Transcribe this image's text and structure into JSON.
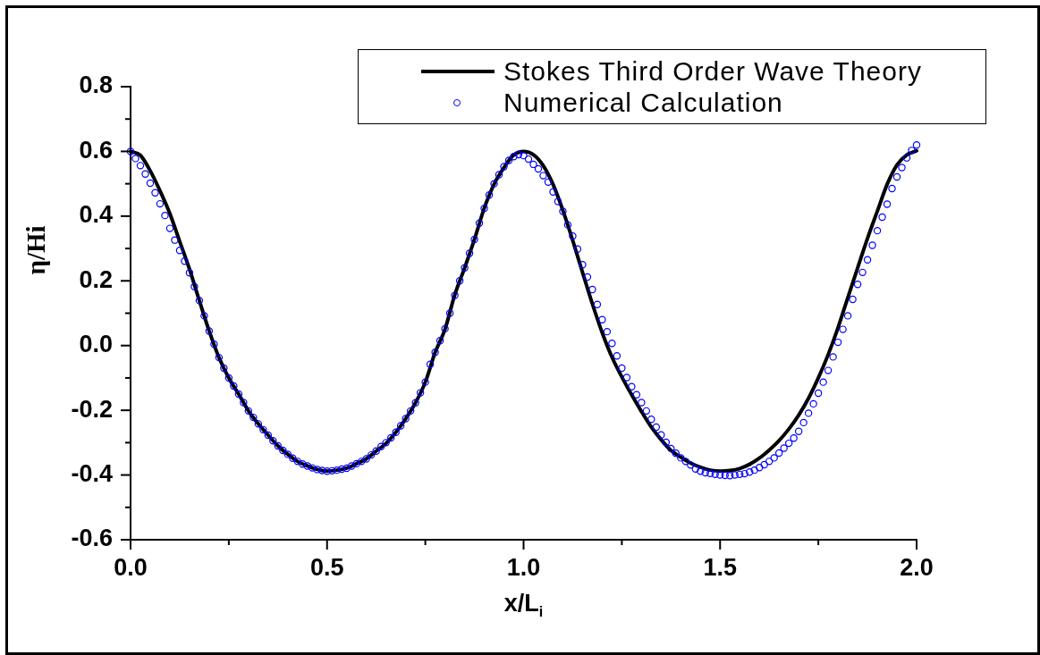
{
  "chart_data": {
    "type": "line",
    "xlabel": "x/L$_{i}$",
    "ylabel": "η/Hi",
    "xlim": [
      0,
      2
    ],
    "ylim": [
      -0.6,
      0.8
    ],
    "xticks": [
      {
        "value": 0,
        "label": "0.0"
      },
      {
        "value": 0.25,
        "label": null
      },
      0.5,
      {
        "value": 0.75,
        "label": null
      },
      {
        "value": 1,
        "label": "1.0"
      },
      {
        "value": 1.25,
        "label": null
      },
      1.5,
      {
        "value": 1.75,
        "label": null
      },
      {
        "value": 2,
        "label": "2.0"
      }
    ],
    "yticks": [
      -0.6,
      {
        "value": -0.5,
        "label": null
      },
      -0.4,
      {
        "value": -0.3,
        "label": null
      },
      -0.2,
      {
        "value": -0.1,
        "label": null
      },
      {
        "value": 0,
        "label": "0.0"
      },
      {
        "value": 0.1,
        "label": null
      },
      0.2,
      {
        "value": 0.3,
        "label": null
      },
      0.4,
      {
        "value": 0.5,
        "label": null
      },
      0.6,
      {
        "value": 0.7,
        "label": null
      },
      0.8
    ],
    "grid": false,
    "legend": "top right",
    "series": [
      {
        "name": "Stokes Third Order Wave Theory",
        "color": "#000000",
        "marker": "none",
        "line_style": "solid",
        "x": [
          0,
          0.025,
          0.05,
          0.075,
          0.1,
          0.125,
          0.15,
          0.175,
          0.2,
          0.225,
          0.25,
          0.275,
          0.3,
          0.325,
          0.35,
          0.375,
          0.4,
          0.425,
          0.45,
          0.475,
          0.5,
          0.525,
          0.55,
          0.575,
          0.6,
          0.625,
          0.65,
          0.675,
          0.7,
          0.725,
          0.75,
          0.775,
          0.8,
          0.825,
          0.85,
          0.875,
          0.9,
          0.925,
          0.95,
          0.975,
          1,
          1.025,
          1.05,
          1.075,
          1.1,
          1.125,
          1.15,
          1.175,
          1.2,
          1.225,
          1.25,
          1.275,
          1.3,
          1.325,
          1.35,
          1.375,
          1.4,
          1.425,
          1.45,
          1.475,
          1.5,
          1.525,
          1.55,
          1.575,
          1.6,
          1.625,
          1.65,
          1.675,
          1.7,
          1.725,
          1.75,
          1.775,
          1.8,
          1.825,
          1.85,
          1.875,
          1.9,
          1.925,
          1.95,
          1.975,
          2
        ],
        "values": [
          0.6,
          0.588,
          0.54,
          0.478,
          0.408,
          0.322,
          0.236,
          0.139,
          0.045,
          -0.037,
          -0.1,
          -0.15,
          -0.202,
          -0.242,
          -0.277,
          -0.31,
          -0.336,
          -0.358,
          -0.372,
          -0.383,
          -0.388,
          -0.385,
          -0.379,
          -0.365,
          -0.35,
          -0.326,
          -0.302,
          -0.268,
          -0.226,
          -0.177,
          -0.113,
          -0.021,
          0.05,
          0.157,
          0.24,
          0.328,
          0.425,
          0.499,
          0.55,
          0.589,
          0.6,
          0.59,
          0.556,
          0.498,
          0.418,
          0.325,
          0.226,
          0.129,
          0.04,
          -0.036,
          -0.097,
          -0.152,
          -0.204,
          -0.252,
          -0.291,
          -0.324,
          -0.345,
          -0.363,
          -0.376,
          -0.385,
          -0.388,
          -0.386,
          -0.38,
          -0.367,
          -0.348,
          -0.323,
          -0.294,
          -0.258,
          -0.215,
          -0.163,
          -0.1,
          -0.028,
          0.055,
          0.148,
          0.24,
          0.331,
          0.415,
          0.498,
          0.558,
          0.589,
          0.602
        ]
      },
      {
        "name": "Numerical Calculation",
        "type": "scatter",
        "color": "#0000ff",
        "marker": "circle",
        "x": [
          0,
          0.0125,
          0.025,
          0.0375,
          0.05,
          0.0625,
          0.075,
          0.0875,
          0.1,
          0.1125,
          0.125,
          0.1375,
          0.15,
          0.1625,
          0.175,
          0.1875,
          0.2,
          0.2125,
          0.225,
          0.2375,
          0.25,
          0.2625,
          0.275,
          0.2875,
          0.3,
          0.3125,
          0.325,
          0.3375,
          0.35,
          0.3625,
          0.375,
          0.3875,
          0.4,
          0.4125,
          0.425,
          0.4375,
          0.45,
          0.4625,
          0.475,
          0.4875,
          0.5,
          0.5125,
          0.525,
          0.5375,
          0.55,
          0.5625,
          0.575,
          0.5875,
          0.6,
          0.6125,
          0.625,
          0.6375,
          0.65,
          0.6625,
          0.675,
          0.6875,
          0.7,
          0.7125,
          0.725,
          0.7375,
          0.75,
          0.7625,
          0.775,
          0.7875,
          0.8,
          0.8125,
          0.825,
          0.8375,
          0.85,
          0.8625,
          0.875,
          0.8875,
          0.9,
          0.9125,
          0.925,
          0.9375,
          0.95,
          0.9625,
          0.975,
          0.9875,
          1,
          1.0125,
          1.025,
          1.0375,
          1.05,
          1.0625,
          1.075,
          1.0875,
          1.1,
          1.1125,
          1.125,
          1.1375,
          1.15,
          1.1625,
          1.175,
          1.1875,
          1.2,
          1.2125,
          1.225,
          1.2375,
          1.25,
          1.2625,
          1.275,
          1.2875,
          1.3,
          1.3125,
          1.325,
          1.3375,
          1.35,
          1.3625,
          1.375,
          1.3875,
          1.4,
          1.4125,
          1.425,
          1.4375,
          1.45,
          1.4625,
          1.475,
          1.4875,
          1.5,
          1.5125,
          1.525,
          1.5375,
          1.55,
          1.5625,
          1.575,
          1.5875,
          1.6,
          1.6125,
          1.625,
          1.6375,
          1.65,
          1.6625,
          1.675,
          1.6875,
          1.7,
          1.7125,
          1.725,
          1.7375,
          1.75,
          1.7625,
          1.775,
          1.7875,
          1.8,
          1.8125,
          1.825,
          1.8375,
          1.85,
          1.8625,
          1.875,
          1.8875,
          1.9,
          1.9125,
          1.925,
          1.9375,
          1.95,
          1.9625,
          1.975,
          1.9875,
          2
        ],
        "values": [
          0.6,
          0.578,
          0.556,
          0.53,
          0.502,
          0.472,
          0.438,
          0.402,
          0.362,
          0.326,
          0.294,
          0.261,
          0.225,
          0.182,
          0.139,
          0.092,
          0.045,
          0.004,
          -0.037,
          -0.07,
          -0.1,
          -0.125,
          -0.15,
          -0.176,
          -0.202,
          -0.222,
          -0.242,
          -0.26,
          -0.277,
          -0.294,
          -0.31,
          -0.324,
          -0.336,
          -0.348,
          -0.358,
          -0.366,
          -0.372,
          -0.378,
          -0.383,
          -0.386,
          -0.388,
          -0.387,
          -0.385,
          -0.382,
          -0.379,
          -0.372,
          -0.365,
          -0.358,
          -0.35,
          -0.338,
          -0.326,
          -0.312,
          -0.3,
          -0.285,
          -0.268,
          -0.248,
          -0.226,
          -0.202,
          -0.177,
          -0.146,
          -0.113,
          -0.058,
          -0.021,
          0.015,
          0.052,
          0.1,
          0.155,
          0.2,
          0.24,
          0.285,
          0.328,
          0.378,
          0.424,
          0.465,
          0.5,
          0.528,
          0.553,
          0.572,
          0.584,
          0.59,
          0.587,
          0.576,
          0.56,
          0.546,
          0.525,
          0.505,
          0.475,
          0.445,
          0.415,
          0.373,
          0.338,
          0.298,
          0.25,
          0.212,
          0.173,
          0.127,
          0.08,
          0.043,
          0.007,
          -0.032,
          -0.07,
          -0.099,
          -0.127,
          -0.152,
          -0.176,
          -0.202,
          -0.228,
          -0.252,
          -0.276,
          -0.299,
          -0.318,
          -0.333,
          -0.347,
          -0.358,
          -0.369,
          -0.381,
          -0.388,
          -0.393,
          -0.395,
          -0.398,
          -0.4,
          -0.401,
          -0.402,
          -0.4,
          -0.398,
          -0.396,
          -0.391,
          -0.385,
          -0.377,
          -0.368,
          -0.358,
          -0.347,
          -0.332,
          -0.317,
          -0.302,
          -0.286,
          -0.265,
          -0.238,
          -0.209,
          -0.18,
          -0.147,
          -0.113,
          -0.077,
          -0.035,
          0.01,
          0.05,
          0.092,
          0.143,
          0.189,
          0.226,
          0.265,
          0.31,
          0.355,
          0.397,
          0.437,
          0.485,
          0.521,
          0.55,
          0.58,
          0.603,
          0.62
        ]
      }
    ]
  }
}
